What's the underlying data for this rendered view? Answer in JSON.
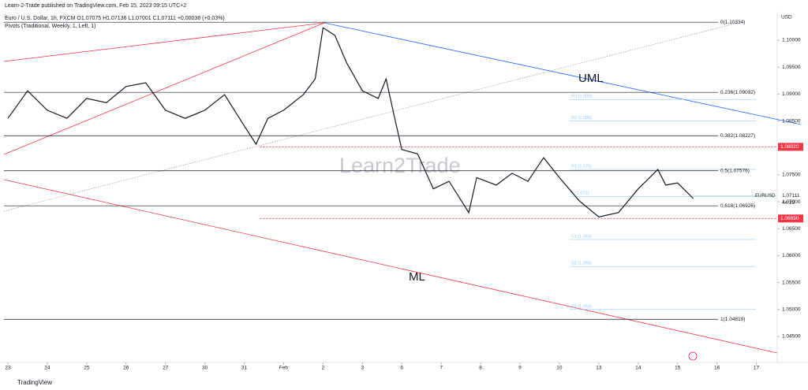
{
  "header": {
    "published": "Learn-2-Trade published on TradingView.com, Feb 15, 2023 09:15 UTC+2",
    "symbol_line": "Euro / U.S. Dollar, 1h, FXCM  O1.07075 H1.07136 L1.07001 C1.07111 +0.00036 (+0.03%)",
    "indicator": "Pivots (Traditional, Weekly, 1, Left, 1)"
  },
  "chart_data": {
    "type": "line",
    "currency": "USD",
    "watermark": "Learn2Trade",
    "annotations": [
      "UML",
      "ML"
    ],
    "footer": "TradingView",
    "xlim": [
      -0.1,
      19.5
    ],
    "xticks": [
      {
        "value": 0,
        "label": "23"
      },
      {
        "value": 1,
        "label": "24"
      },
      {
        "value": 2,
        "label": "25"
      },
      {
        "value": 3,
        "label": "26"
      },
      {
        "value": 4,
        "label": "27"
      },
      {
        "value": 5,
        "label": "30"
      },
      {
        "value": 6,
        "label": "31"
      },
      {
        "value": 7,
        "label": "Feb"
      },
      {
        "value": 8,
        "label": "2"
      },
      {
        "value": 9,
        "label": "3"
      },
      {
        "value": 10,
        "label": "6"
      },
      {
        "value": 11,
        "label": "7"
      },
      {
        "value": 12,
        "label": "8"
      },
      {
        "value": 13,
        "label": "9"
      },
      {
        "value": 14,
        "label": "10"
      },
      {
        "value": 15,
        "label": "13"
      },
      {
        "value": 16,
        "label": "14"
      },
      {
        "value": 17,
        "label": "15"
      },
      {
        "value": 18,
        "label": "16"
      },
      {
        "value": 19,
        "label": "17"
      }
    ],
    "ylim": [
      1.04047,
      1.10483
    ],
    "yticks": [
      {
        "value": 1.1,
        "label": "1.10000"
      },
      {
        "value": 1.095,
        "label": "1.09500"
      },
      {
        "value": 1.09,
        "label": "1.09000"
      },
      {
        "value": 1.085,
        "label": "1.08500"
      },
      {
        "value": 1.08,
        "label": "1.08000"
      },
      {
        "value": 1.075,
        "label": "1.07500"
      },
      {
        "value": 1.07,
        "label": "1.07000"
      },
      {
        "value": 1.065,
        "label": "1.06500"
      },
      {
        "value": 1.06,
        "label": "1.06000"
      },
      {
        "value": 1.055,
        "label": "1.05500"
      },
      {
        "value": 1.05,
        "label": "1.05000"
      },
      {
        "value": 1.045,
        "label": "1.04500"
      }
    ],
    "series": [
      {
        "name": "EURUSD",
        "color": "#131722",
        "x": [
          0,
          0.5,
          1,
          1.5,
          2,
          2.5,
          3,
          3.5,
          4,
          4.5,
          5,
          5.5,
          6,
          6.3,
          6.6,
          7,
          7.5,
          7.8,
          8,
          8.3,
          8.6,
          9,
          9.4,
          9.6,
          9.8,
          10,
          10.4,
          10.8,
          11.2,
          11.7,
          11.9,
          12.4,
          12.8,
          13.2,
          13.6,
          14,
          14.5,
          15,
          15.5,
          16,
          16.5,
          16.7,
          17,
          17.4
        ],
        "values": [
          1.0855,
          1.0906,
          1.087,
          1.0855,
          1.0892,
          1.0884,
          1.0914,
          1.0921,
          1.087,
          1.0855,
          1.087,
          1.0899,
          1.0841,
          1.0807,
          1.0855,
          1.087,
          1.0899,
          1.0928,
          1.1023,
          1.1009,
          1.0958,
          1.0906,
          1.0892,
          1.0928,
          1.0862,
          1.0797,
          1.0789,
          1.0724,
          1.0738,
          1.068,
          1.0745,
          1.0731,
          1.0753,
          1.0738,
          1.0782,
          1.0745,
          1.0702,
          1.0672,
          1.068,
          1.0724,
          1.076,
          1.0731,
          1.0735,
          1.0706
        ]
      }
    ],
    "levels": [
      {
        "value": 1.10334,
        "label": "0(1.10334)"
      },
      {
        "value": 1.09032,
        "label": "0.236(1.09032)"
      },
      {
        "value": 1.08227,
        "label": "0.382(1.08227)"
      },
      {
        "value": 1.07576,
        "label": "0.5(1.07576)"
      },
      {
        "value": 1.06926,
        "label": "0.618(1.06926)"
      },
      {
        "value": 1.04819,
        "label": "1(1.04819)"
      }
    ],
    "pivots": [
      {
        "value": 1.089,
        "label": "R3 (1.089)"
      },
      {
        "value": 1.085,
        "label": "R2 (1.085)"
      },
      {
        "value": 1.076,
        "label": "R1 (1.076)"
      },
      {
        "value": 1.071,
        "label": "P (1.071)"
      },
      {
        "value": 1.063,
        "label": "S1 (1.063)"
      },
      {
        "value": 1.058,
        "label": "S2 (1.058)"
      },
      {
        "value": 1.05,
        "label": "S3 (1.050)"
      }
    ],
    "price_tags": [
      {
        "value": 1.0802,
        "label": "1.08020",
        "color": "#f23645"
      },
      {
        "value": 1.0669,
        "label": "1.06690",
        "color": "#f23645"
      }
    ],
    "current_price": {
      "value": 1.07111,
      "label": "1.07111",
      "symbol": "EURUSD",
      "countdown": "44:39"
    }
  }
}
